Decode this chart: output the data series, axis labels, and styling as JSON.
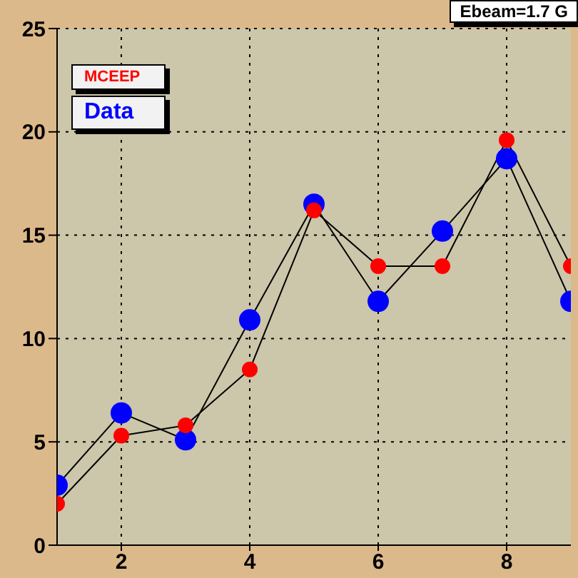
{
  "chart_data": {
    "type": "line",
    "x": [
      1,
      2,
      3,
      4,
      5,
      6,
      7,
      8,
      9
    ],
    "series": [
      {
        "name": "Data",
        "color": "#0000ff",
        "values": [
          2.9,
          6.4,
          5.1,
          10.9,
          16.5,
          11.8,
          15.2,
          18.7,
          11.8
        ]
      },
      {
        "name": "MCEEP",
        "color": "#ff0000",
        "values": [
          2.0,
          5.3,
          5.8,
          8.5,
          16.2,
          13.5,
          13.5,
          19.6,
          13.5
        ]
      }
    ],
    "xlim": [
      1,
      9
    ],
    "xticks": [
      2,
      4,
      6,
      8
    ],
    "ylim": [
      0,
      25
    ],
    "yticks": [
      0,
      5,
      10,
      15,
      20,
      25
    ],
    "grid": true,
    "legend": "top left",
    "marker": "circle",
    "line_style": "solid",
    "annotations": [
      "Ebeam=1.7 G"
    ]
  }
}
